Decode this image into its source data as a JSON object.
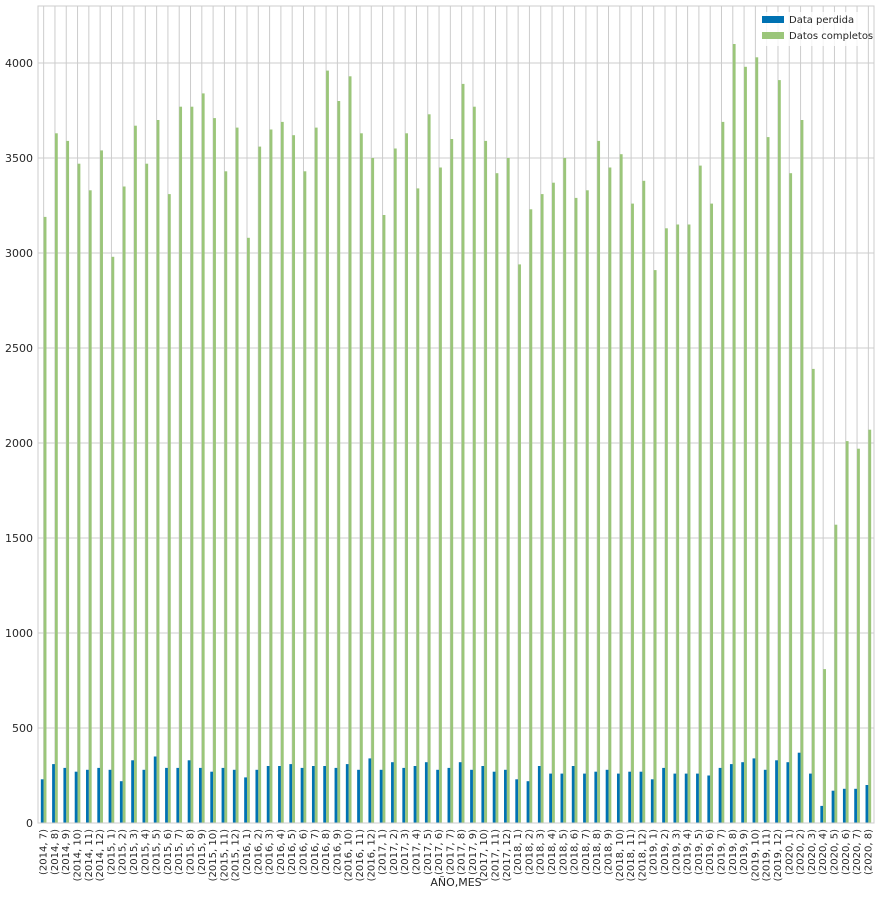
{
  "chart_data": {
    "type": "bar",
    "title": "",
    "xlabel": "AÑO,MES",
    "ylabel": "",
    "ylim": [
      0,
      4300
    ],
    "yticks": [
      0,
      500,
      1000,
      1500,
      2000,
      2500,
      3000,
      3500,
      4000
    ],
    "grid": true,
    "legend_position": "top-right",
    "categories": [
      "(2014, 7)",
      "(2014, 8)",
      "(2014, 9)",
      "(2014, 10)",
      "(2014, 11)",
      "(2014, 12)",
      "(2015, 1)",
      "(2015, 2)",
      "(2015, 3)",
      "(2015, 4)",
      "(2015, 5)",
      "(2015, 6)",
      "(2015, 7)",
      "(2015, 8)",
      "(2015, 9)",
      "(2015, 10)",
      "(2015, 11)",
      "(2015, 12)",
      "(2016, 1)",
      "(2016, 2)",
      "(2016, 3)",
      "(2016, 4)",
      "(2016, 5)",
      "(2016, 6)",
      "(2016, 7)",
      "(2016, 8)",
      "(2016, 9)",
      "(2016, 10)",
      "(2016, 11)",
      "(2016, 12)",
      "(2017, 1)",
      "(2017, 2)",
      "(2017, 3)",
      "(2017, 4)",
      "(2017, 5)",
      "(2017, 6)",
      "(2017, 7)",
      "(2017, 8)",
      "(2017, 9)",
      "(2017, 10)",
      "(2017, 11)",
      "(2017, 12)",
      "(2018, 1)",
      "(2018, 2)",
      "(2018, 3)",
      "(2018, 4)",
      "(2018, 5)",
      "(2018, 6)",
      "(2018, 7)",
      "(2018, 8)",
      "(2018, 9)",
      "(2018, 10)",
      "(2018, 11)",
      "(2018, 12)",
      "(2019, 1)",
      "(2019, 2)",
      "(2019, 3)",
      "(2019, 4)",
      "(2019, 5)",
      "(2019, 6)",
      "(2019, 7)",
      "(2019, 8)",
      "(2019, 9)",
      "(2019, 10)",
      "(2019, 11)",
      "(2019, 12)",
      "(2020, 1)",
      "(2020, 2)",
      "(2020, 3)",
      "(2020, 4)",
      "(2020, 5)",
      "(2020, 6)",
      "(2020, 7)",
      "(2020, 8)"
    ],
    "series": [
      {
        "name": "Data perdida",
        "color": "#0072b2",
        "values": [
          230,
          310,
          290,
          270,
          280,
          290,
          280,
          220,
          330,
          280,
          350,
          290,
          290,
          330,
          290,
          270,
          290,
          280,
          240,
          280,
          300,
          300,
          310,
          290,
          300,
          300,
          290,
          310,
          280,
          340,
          280,
          320,
          290,
          300,
          320,
          280,
          290,
          320,
          280,
          300,
          270,
          280,
          230,
          220,
          300,
          260,
          260,
          300,
          260,
          270,
          280,
          260,
          270,
          270,
          230,
          290,
          260,
          260,
          260,
          250,
          290,
          310,
          320,
          340,
          280,
          330,
          320,
          370,
          260,
          90,
          170,
          180,
          180,
          200
        ]
      },
      {
        "name": "Datos completos",
        "color": "#9bc67a",
        "values": [
          3190,
          3630,
          3590,
          3470,
          3330,
          3540,
          2980,
          3350,
          3670,
          3470,
          3700,
          3310,
          3770,
          3770,
          3840,
          3710,
          3430,
          3660,
          3080,
          3560,
          3650,
          3690,
          3620,
          3430,
          3660,
          3960,
          3800,
          3930,
          3630,
          3500,
          3200,
          3550,
          3630,
          3340,
          3730,
          3450,
          3600,
          3890,
          3770,
          3590,
          3420,
          3500,
          2940,
          3230,
          3310,
          3370,
          3500,
          3290,
          3330,
          3590,
          3450,
          3520,
          3260,
          3380,
          2910,
          3130,
          3150,
          3150,
          3460,
          3260,
          3690,
          4100,
          3980,
          4030,
          3610,
          3910,
          3420,
          3700,
          2390,
          810,
          1570,
          2010,
          1970,
          2070
        ]
      }
    ]
  }
}
